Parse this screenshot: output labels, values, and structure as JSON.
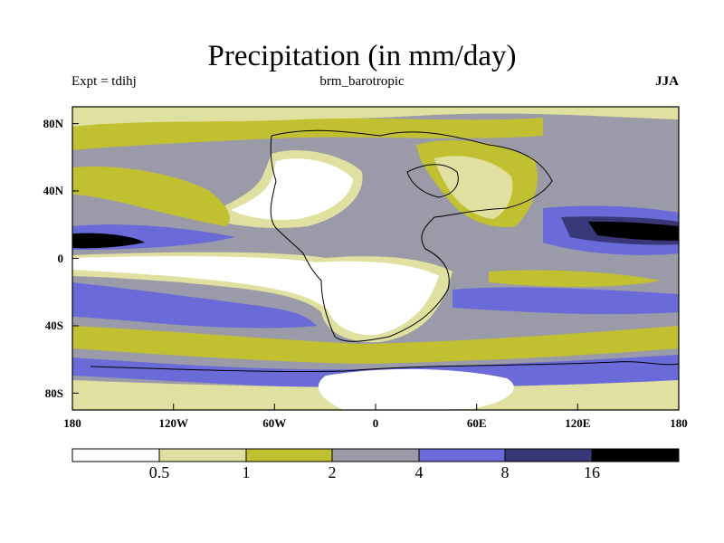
{
  "title": "Precipitation (in mm/day)",
  "experiment_label": "Expt = tdihj",
  "run_label": "brm_barotropic",
  "season_label": "JJA",
  "axes": {
    "x_ticks": [
      "180",
      "120W",
      "60W",
      "0",
      "60E",
      "120E",
      "180"
    ],
    "y_ticks": [
      "80N",
      "40N",
      "0",
      "40S",
      "80S"
    ]
  },
  "colorbar": {
    "colors": [
      "#ffffff",
      "#e0e0a0",
      "#c0c030",
      "#9a9aa8",
      "#6a6ad8",
      "#383878",
      "#000000"
    ],
    "labels": [
      "0.5",
      "1",
      "2",
      "4",
      "8",
      "16"
    ]
  },
  "chart_data": {
    "type": "heatmap",
    "title": "Precipitation (in mm/day)",
    "variable": "Precipitation",
    "units": "mm/day",
    "season": "JJA",
    "x_range": [
      -180,
      180
    ],
    "y_range": [
      -90,
      90
    ],
    "contour_levels": [
      0.5,
      1,
      2,
      4,
      8,
      16
    ]
  }
}
